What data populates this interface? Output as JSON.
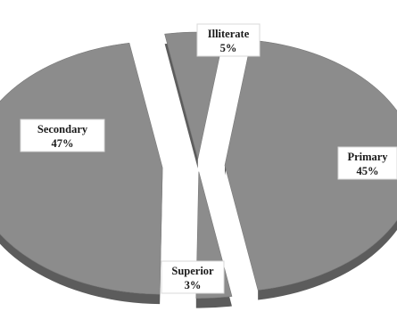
{
  "chart_data": {
    "type": "pie",
    "title": "",
    "categories": [
      "Primary",
      "Superior",
      "Secondary",
      "Illiterate"
    ],
    "values": [
      45,
      3,
      47,
      5
    ],
    "value_labels": [
      "45%",
      "3%",
      "47%",
      "5%"
    ],
    "exploded": true,
    "three_d": true,
    "legend": "none",
    "colors": {
      "slice": "#8c8c8c",
      "side": "#5c5c5c",
      "label_bg": "#ffffff"
    }
  }
}
